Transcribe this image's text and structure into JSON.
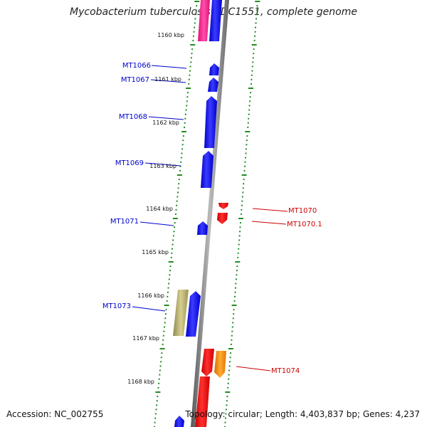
{
  "title": "Mycobacterium tuberculosis CDC1551, complete genome",
  "accession": "Accession: NC_002755",
  "summary": "Topology: circular; Length: 4,403,837 bp; Genes: 4,237",
  "ticks": [
    "1160 kbp",
    "1161 kbp",
    "1162 kbp",
    "1163 kbp",
    "1164 kbp",
    "1165 kbp",
    "1166 kbp",
    "1167 kbp",
    "1168 kbp"
  ],
  "genes": [
    {
      "label": "MT1066",
      "strand": "forward",
      "color": "#0000ff"
    },
    {
      "label": "MT1067",
      "strand": "forward",
      "color": "#0000ff"
    },
    {
      "label": "MT1068",
      "strand": "forward",
      "color": "#0000ff"
    },
    {
      "label": "MT1069",
      "strand": "forward",
      "color": "#0000ff"
    },
    {
      "label": "MT1070",
      "strand": "reverse",
      "color": "#ff0000"
    },
    {
      "label": "MT1070.1",
      "strand": "reverse",
      "color": "#ff0000"
    },
    {
      "label": "MT1071",
      "strand": "forward",
      "color": "#0000ff"
    },
    {
      "label": "MT1073",
      "strand": "forward",
      "color": "#0000ff"
    },
    {
      "label": "MT1074",
      "strand": "reverse",
      "color": "#ff8c00"
    }
  ],
  "colors": {
    "forward_cds": "#0000ff",
    "reverse_cds": "#ff0000",
    "other_feature_magenta": "#ff1493",
    "other_feature_olive": "#b5ad6a",
    "other_feature_orange": "#ff8c00",
    "tick": "#228b22",
    "backbone": "#808080"
  }
}
